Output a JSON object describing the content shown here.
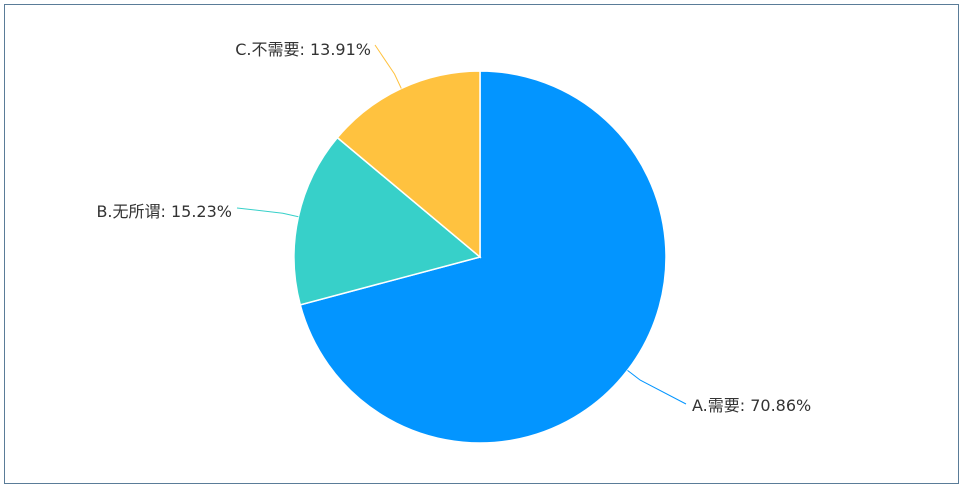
{
  "chart_data": {
    "type": "pie",
    "title": "",
    "slices": [
      {
        "label": "A.需要",
        "value": 70.86,
        "display": "A.需要: 70.86%",
        "color": "#0395ff"
      },
      {
        "label": "B.无所谓",
        "value": 15.23,
        "display": "B.无所谓: 15.23%",
        "color": "#37d0c9"
      },
      {
        "label": "C.不需要",
        "value": 13.91,
        "display": "C.不需要: 13.91%",
        "color": "#ffc23f"
      }
    ],
    "unit": "%",
    "legend": "none",
    "start": "12 o'clock",
    "direction": "clockwise"
  }
}
